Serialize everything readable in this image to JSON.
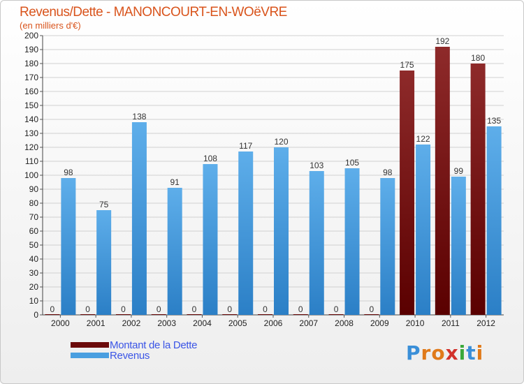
{
  "chart_data": {
    "type": "bar",
    "title": "Revenus/Dette - MANONCOURT-EN-WOëVRE",
    "subtitle": "(en milliers d'€)",
    "categories": [
      "2000",
      "2001",
      "2002",
      "2003",
      "2004",
      "2005",
      "2006",
      "2007",
      "2008",
      "2009",
      "2010",
      "2011",
      "2012"
    ],
    "series": [
      {
        "name": "Montant de la Dette",
        "color": "#6b0a0a",
        "values": [
          0,
          0,
          0,
          0,
          0,
          0,
          0,
          0,
          0,
          0,
          175,
          192,
          180
        ]
      },
      {
        "name": "Revenus",
        "color": "#4a9fe0",
        "values": [
          98,
          75,
          138,
          91,
          108,
          117,
          120,
          103,
          105,
          98,
          122,
          99,
          135
        ]
      }
    ],
    "ylim": [
      0,
      200
    ],
    "yticks": [
      0,
      10,
      20,
      30,
      40,
      50,
      60,
      70,
      80,
      90,
      100,
      110,
      120,
      130,
      140,
      150,
      160,
      170,
      180,
      190,
      200
    ],
    "grid": true,
    "legend": "bottom-left"
  },
  "legend": {
    "items": [
      {
        "label": "Montant de la Dette",
        "color": "#6b0a0a"
      },
      {
        "label": "Revenus",
        "color": "#4a9fe0"
      }
    ]
  },
  "logo": {
    "letters": [
      "P",
      "r",
      "o",
      "x",
      "i",
      "t",
      "i"
    ]
  }
}
